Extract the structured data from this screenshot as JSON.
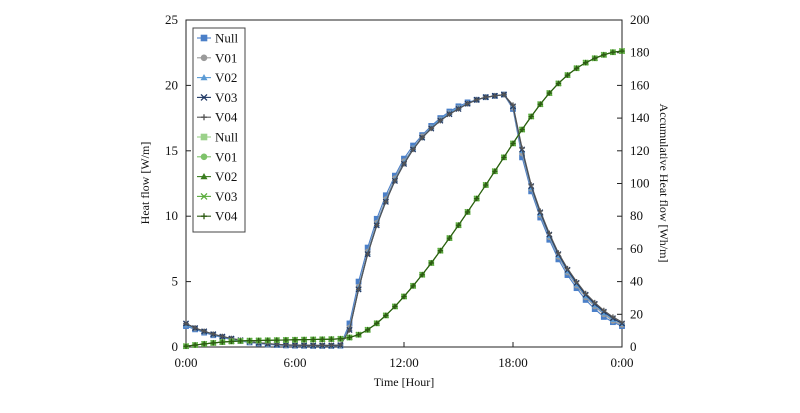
{
  "chart_data": {
    "type": "line",
    "title": "",
    "xlabel": "Time [Hour]",
    "ylabel": "Heat flow [W/m]",
    "y2label": "Accumulative Heat flow [Wh/m]",
    "x_unit": "hour",
    "xlim": [
      0,
      24
    ],
    "ylim": [
      0,
      25
    ],
    "y2lim": [
      0,
      200
    ],
    "x_ticks": [
      0,
      6,
      12,
      18,
      24
    ],
    "x_tick_labels": [
      "0:00",
      "6:00",
      "12:00",
      "18:00",
      "0:00"
    ],
    "y_ticks": [
      0,
      5,
      10,
      15,
      20,
      25
    ],
    "y_tick_labels": [
      "0",
      "5",
      "10",
      "15",
      "20",
      "25"
    ],
    "y2_ticks": [
      0,
      20,
      40,
      60,
      80,
      100,
      120,
      140,
      160,
      180,
      200
    ],
    "y2_tick_labels": [
      "0",
      "20",
      "40",
      "60",
      "80",
      "100",
      "120",
      "140",
      "160",
      "180",
      "200"
    ],
    "grid": false,
    "legend_position": "top-left",
    "x": [
      0,
      0.5,
      1,
      1.5,
      2,
      2.5,
      3,
      3.5,
      4,
      4.5,
      5,
      5.5,
      6,
      6.5,
      7,
      7.5,
      8,
      8.5,
      9,
      9.5,
      10,
      10.5,
      11,
      11.5,
      12,
      12.5,
      13,
      13.5,
      14,
      14.5,
      15,
      15.5,
      16,
      16.5,
      17,
      17.5,
      18,
      18.5,
      19,
      19.5,
      20,
      20.5,
      21,
      21.5,
      22,
      22.5,
      23,
      23.5,
      24
    ],
    "series": [
      {
        "name": "Null",
        "axis": "left",
        "color": "#4a7fc8",
        "marker": "square",
        "values": [
          1.6,
          1.35,
          1.1,
          0.9,
          0.72,
          0.58,
          0.45,
          0.35,
          0.27,
          0.2,
          0.15,
          0.12,
          0.1,
          0.09,
          0.08,
          0.08,
          0.08,
          0.1,
          1.8,
          5.0,
          7.6,
          9.8,
          11.6,
          13.1,
          14.4,
          15.4,
          16.2,
          16.9,
          17.5,
          18.0,
          18.4,
          18.7,
          18.9,
          19.1,
          19.2,
          19.3,
          18.2,
          14.5,
          11.9,
          9.9,
          8.2,
          6.7,
          5.5,
          4.5,
          3.6,
          2.9,
          2.3,
          1.9,
          1.6
        ]
      },
      {
        "name": "V01",
        "axis": "left",
        "color": "#9a9a9a",
        "marker": "circle",
        "values": [
          1.7,
          1.42,
          1.16,
          0.95,
          0.77,
          0.62,
          0.49,
          0.38,
          0.3,
          0.23,
          0.18,
          0.14,
          0.12,
          0.11,
          0.1,
          0.1,
          0.1,
          0.12,
          1.5,
          4.6,
          7.3,
          9.5,
          11.3,
          12.9,
          14.2,
          15.2,
          16.1,
          16.8,
          17.4,
          17.9,
          18.3,
          18.6,
          18.9,
          19.1,
          19.2,
          19.3,
          18.3,
          14.8,
          12.1,
          10.1,
          8.4,
          6.9,
          5.7,
          4.7,
          3.8,
          3.1,
          2.5,
          2.0,
          1.7
        ]
      },
      {
        "name": "V02",
        "axis": "left",
        "color": "#5b9bd5",
        "marker": "triangle",
        "values": [
          1.7,
          1.43,
          1.17,
          0.96,
          0.78,
          0.63,
          0.5,
          0.39,
          0.31,
          0.24,
          0.19,
          0.15,
          0.13,
          0.12,
          0.11,
          0.11,
          0.11,
          0.13,
          1.4,
          4.5,
          7.2,
          9.4,
          11.2,
          12.8,
          14.1,
          15.2,
          16.0,
          16.8,
          17.4,
          17.9,
          18.3,
          18.6,
          18.9,
          19.1,
          19.2,
          19.3,
          18.4,
          15.0,
          12.2,
          10.2,
          8.5,
          7.0,
          5.8,
          4.8,
          3.9,
          3.2,
          2.6,
          2.1,
          1.8
        ]
      },
      {
        "name": "V03",
        "axis": "left",
        "color": "#1f3864",
        "marker": "x",
        "values": [
          1.8,
          1.45,
          1.2,
          0.98,
          0.8,
          0.65,
          0.52,
          0.41,
          0.32,
          0.25,
          0.2,
          0.16,
          0.14,
          0.13,
          0.12,
          0.12,
          0.12,
          0.14,
          1.3,
          4.4,
          7.1,
          9.3,
          11.1,
          12.7,
          14.0,
          15.1,
          16.0,
          16.7,
          17.3,
          17.8,
          18.2,
          18.6,
          18.9,
          19.1,
          19.2,
          19.3,
          18.4,
          15.1,
          12.3,
          10.3,
          8.6,
          7.1,
          5.9,
          4.9,
          4.0,
          3.3,
          2.7,
          2.2,
          1.8
        ]
      },
      {
        "name": "V04",
        "axis": "left",
        "color": "#555555",
        "marker": "plus",
        "values": [
          1.8,
          1.46,
          1.21,
          0.99,
          0.81,
          0.66,
          0.53,
          0.42,
          0.33,
          0.26,
          0.21,
          0.17,
          0.15,
          0.14,
          0.13,
          0.13,
          0.13,
          0.15,
          1.3,
          4.4,
          7.1,
          9.3,
          11.1,
          12.7,
          14.0,
          15.1,
          16.0,
          16.7,
          17.3,
          17.8,
          18.2,
          18.6,
          18.9,
          19.1,
          19.2,
          19.3,
          18.5,
          15.2,
          12.4,
          10.4,
          8.7,
          7.2,
          6.0,
          5.0,
          4.1,
          3.4,
          2.8,
          2.3,
          1.9
        ]
      },
      {
        "name": "Null",
        "axis": "right",
        "color": "#9bd18a",
        "marker": "square",
        "values": [
          0.5,
          1.2,
          1.9,
          2.5,
          3.0,
          3.4,
          3.7,
          3.9,
          4.0,
          4.1,
          4.2,
          4.3,
          4.4,
          4.5,
          4.6,
          4.7,
          4.8,
          5.0,
          5.8,
          7.5,
          10.5,
          14.5,
          19.3,
          24.8,
          30.9,
          37.4,
          44.2,
          51.4,
          58.9,
          66.6,
          74.5,
          82.6,
          90.8,
          99.1,
          107.5,
          116.0,
          124.5,
          133.0,
          141.0,
          148.5,
          155.3,
          161.2,
          166.3,
          170.5,
          173.9,
          176.6,
          178.7,
          180.3,
          181.0
        ]
      },
      {
        "name": "V01",
        "axis": "right",
        "color": "#7ec36a",
        "marker": "circle",
        "values": [
          0.5,
          1.2,
          1.9,
          2.5,
          3.0,
          3.4,
          3.7,
          3.9,
          4.0,
          4.1,
          4.2,
          4.3,
          4.4,
          4.5,
          4.6,
          4.7,
          4.8,
          5.0,
          5.8,
          7.5,
          10.5,
          14.5,
          19.3,
          24.8,
          30.9,
          37.4,
          44.2,
          51.4,
          58.9,
          66.6,
          74.5,
          82.6,
          90.8,
          99.1,
          107.5,
          116.0,
          124.5,
          133.0,
          141.0,
          148.5,
          155.3,
          161.2,
          166.3,
          170.5,
          173.9,
          176.6,
          178.7,
          180.3,
          181.0
        ]
      },
      {
        "name": "V02",
        "axis": "right",
        "color": "#3a7d1f",
        "marker": "triangle",
        "values": [
          0.5,
          1.2,
          1.9,
          2.5,
          3.0,
          3.4,
          3.7,
          3.9,
          4.0,
          4.1,
          4.2,
          4.3,
          4.4,
          4.5,
          4.6,
          4.7,
          4.8,
          5.0,
          5.8,
          7.5,
          10.5,
          14.5,
          19.3,
          24.8,
          30.9,
          37.4,
          44.2,
          51.4,
          58.9,
          66.6,
          74.5,
          82.6,
          90.8,
          99.1,
          107.5,
          116.0,
          124.5,
          133.0,
          141.0,
          148.5,
          155.3,
          161.2,
          166.3,
          170.5,
          173.9,
          176.6,
          178.7,
          180.3,
          181.0
        ]
      },
      {
        "name": "V03",
        "axis": "right",
        "color": "#5aab3c",
        "marker": "x",
        "values": [
          0.5,
          1.2,
          1.9,
          2.5,
          3.0,
          3.4,
          3.7,
          3.9,
          4.0,
          4.1,
          4.2,
          4.3,
          4.4,
          4.5,
          4.6,
          4.7,
          4.8,
          5.0,
          5.8,
          7.5,
          10.5,
          14.5,
          19.3,
          24.8,
          30.9,
          37.4,
          44.2,
          51.4,
          58.9,
          66.6,
          74.5,
          82.6,
          90.8,
          99.1,
          107.5,
          116.0,
          124.5,
          133.0,
          141.0,
          148.5,
          155.3,
          161.2,
          166.3,
          170.5,
          173.9,
          176.6,
          178.7,
          180.3,
          181.0
        ]
      },
      {
        "name": "V04",
        "axis": "right",
        "color": "#2c5a12",
        "marker": "plus",
        "values": [
          0.5,
          1.2,
          1.9,
          2.5,
          3.0,
          3.4,
          3.7,
          3.9,
          4.0,
          4.1,
          4.2,
          4.3,
          4.4,
          4.5,
          4.6,
          4.7,
          4.8,
          5.0,
          5.8,
          7.5,
          10.5,
          14.5,
          19.3,
          24.8,
          30.9,
          37.4,
          44.2,
          51.4,
          58.9,
          66.6,
          74.5,
          82.6,
          90.8,
          99.1,
          107.5,
          116.0,
          124.5,
          133.0,
          141.0,
          148.5,
          155.3,
          161.2,
          166.3,
          170.5,
          173.9,
          176.6,
          178.7,
          180.3,
          181.0
        ]
      }
    ]
  }
}
